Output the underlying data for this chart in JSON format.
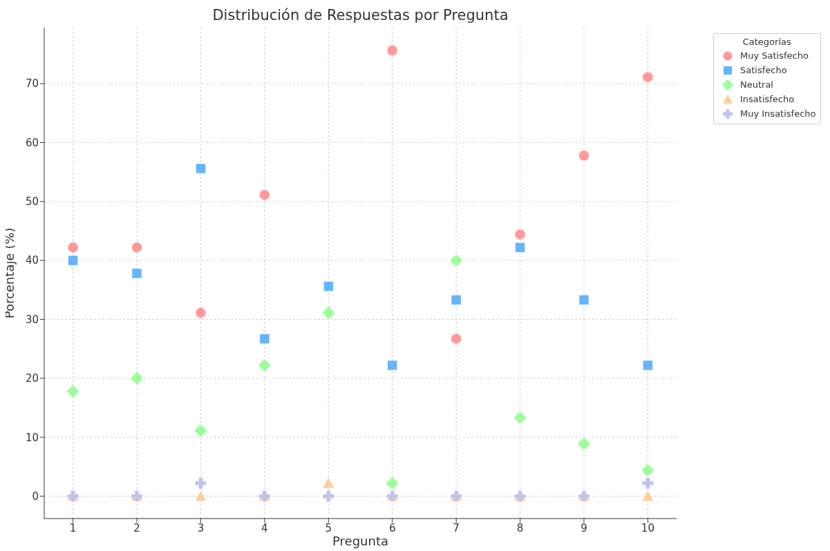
{
  "chart_data": {
    "type": "scatter",
    "title": "Distribución de Respuestas por Pregunta",
    "xlabel": "Pregunta",
    "ylabel": "Porcentaje (%)",
    "legend_title": "Categorías",
    "x": [
      1,
      2,
      3,
      4,
      5,
      6,
      7,
      8,
      9,
      10
    ],
    "series": [
      {
        "name": "Muy Satisfecho",
        "color": "#ff9999",
        "marker": "circle",
        "values": [
          42.2,
          42.2,
          31.1,
          51.1,
          null,
          75.6,
          26.7,
          44.4,
          57.8,
          71.1
        ]
      },
      {
        "name": "Satisfecho",
        "color": "#66b3ff",
        "marker": "square",
        "values": [
          40,
          37.8,
          55.6,
          26.7,
          35.6,
          22.2,
          33.3,
          42.2,
          33.3,
          22.2
        ]
      },
      {
        "name": "Neutral",
        "color": "#99ff99",
        "marker": "diamond",
        "values": [
          17.8,
          20,
          11.1,
          22.2,
          31.1,
          2.2,
          40,
          13.3,
          8.9,
          4.4
        ]
      },
      {
        "name": "Insatisfecho",
        "color": "#ffcc99",
        "marker": "triangle",
        "values": [
          0,
          0,
          0,
          0,
          2.2,
          0,
          0,
          0,
          0,
          0
        ]
      },
      {
        "name": "Muy Insatisfecho",
        "color": "#c2c2f0",
        "marker": "cross",
        "values": [
          0,
          0,
          2.2,
          0,
          0,
          0,
          0,
          0,
          0,
          2.2
        ]
      }
    ],
    "xlim": [
      0.55,
      10.45
    ],
    "xticks": [
      1,
      2,
      3,
      4,
      5,
      6,
      7,
      8,
      9,
      10
    ],
    "ylim": [
      -3.8,
      79.5
    ],
    "yticks": [
      0,
      10,
      20,
      30,
      40,
      50,
      60,
      70
    ],
    "grid": true,
    "legend": "top right"
  }
}
